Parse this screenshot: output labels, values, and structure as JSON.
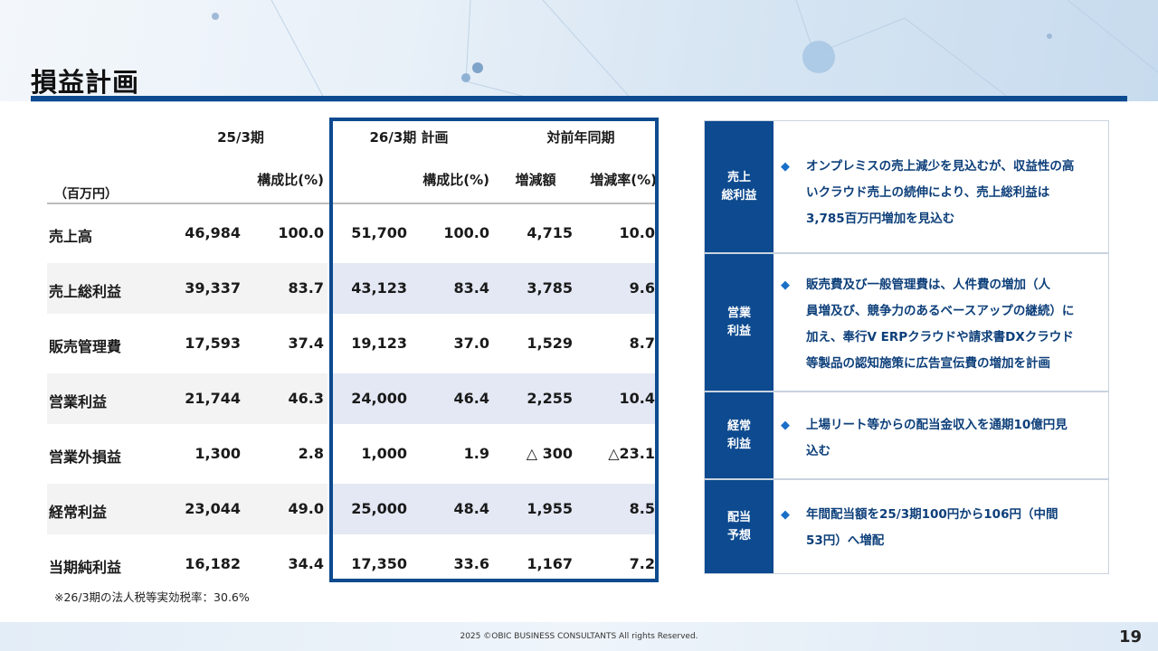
{
  "title": "損益計画",
  "table": {
    "unit_label": "（百万円）",
    "period_prev": "25/3期",
    "period_plan": "26/3期 計画",
    "yoy_header": "対前年同期",
    "col_ratio_prev": "構成比(%)",
    "col_ratio_plan": "構成比(%)",
    "col_change": "増減額",
    "col_change_rate": "増減率(%)",
    "rows": [
      {
        "label": "売上高",
        "prev": "46,984",
        "prev_ratio": "100.0",
        "plan": "51,700",
        "plan_ratio": "100.0",
        "change": "4,715",
        "rate": "10.0"
      },
      {
        "label": "売上総利益",
        "prev": "39,337",
        "prev_ratio": "83.7",
        "plan": "43,123",
        "plan_ratio": "83.4",
        "change": "3,785",
        "rate": "9.6"
      },
      {
        "label": "販売管理費",
        "prev": "17,593",
        "prev_ratio": "37.4",
        "plan": "19,123",
        "plan_ratio": "37.0",
        "change": "1,529",
        "rate": "8.7"
      },
      {
        "label": "営業利益",
        "prev": "21,744",
        "prev_ratio": "46.3",
        "plan": "24,000",
        "plan_ratio": "46.4",
        "change": "2,255",
        "rate": "10.4"
      },
      {
        "label": "営業外損益",
        "prev": "1,300",
        "prev_ratio": "2.8",
        "plan": "1,000",
        "plan_ratio": "1.9",
        "change": "△ 300",
        "rate": "△23.1"
      },
      {
        "label": "経常利益",
        "prev": "23,044",
        "prev_ratio": "49.0",
        "plan": "25,000",
        "plan_ratio": "48.4",
        "change": "1,955",
        "rate": "8.5"
      },
      {
        "label": "当期純利益",
        "prev": "16,182",
        "prev_ratio": "34.4",
        "plan": "17,350",
        "plan_ratio": "33.6",
        "change": "1,167",
        "rate": "7.2"
      }
    ],
    "note": "※26/3期の法人税等実効税率：30.6%"
  },
  "panel": {
    "bullet_icon": "diamond-bullet-icon",
    "items": [
      {
        "label_line1": "売上",
        "label_line2": "総利益",
        "lines": [
          "オンプレミスの売上減少を見込むが、収益性の高",
          "いクラウド売上の続伸により、売上総利益は",
          "3,785百万円増加を見込む"
        ]
      },
      {
        "label_line1": "営業",
        "label_line2": "利益",
        "lines": [
          "販売費及び一般管理費は、人件費の増加（人",
          "員増及び、競争力のあるベースアップの継続）に",
          "加え、奉行V ERPクラウドや請求書DXクラウド",
          "等製品の認知施策に広告宣伝費の増加を計画"
        ]
      },
      {
        "label_line1": "経常",
        "label_line2": "利益",
        "lines": [
          "上場リート等からの配当金収入を通期10億円見",
          "込む"
        ]
      },
      {
        "label_line1": "配当",
        "label_line2": "予想",
        "lines": [
          "年間配当額を25/3期100円から106円（中間",
          "53円）へ増配"
        ]
      }
    ]
  },
  "footer": {
    "copyright": "2025 ©OBIC BUSINESS CONSULTANTS All rights Reserved.",
    "page_number": "19"
  },
  "colors": {
    "accent": "#0d4a8f",
    "band": "#e3e8f4",
    "panel_text": "#0d3f7a",
    "bullet": "#1a6fc7"
  }
}
